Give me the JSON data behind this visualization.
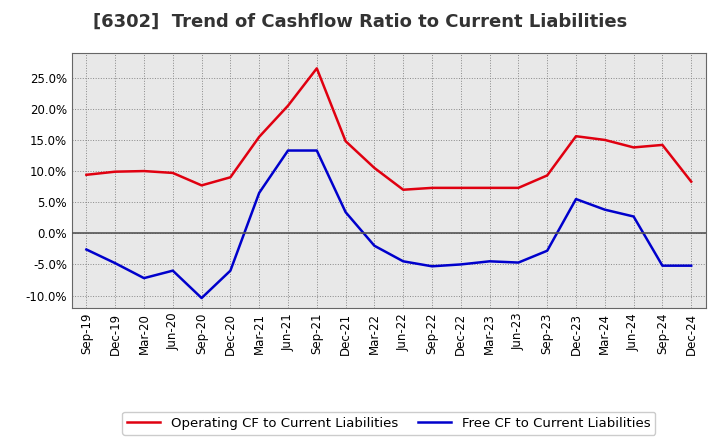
{
  "title": "[6302]  Trend of Cashflow Ratio to Current Liabilities",
  "x_labels": [
    "Sep-19",
    "Dec-19",
    "Mar-20",
    "Jun-20",
    "Sep-20",
    "Dec-20",
    "Mar-21",
    "Jun-21",
    "Sep-21",
    "Dec-21",
    "Mar-22",
    "Jun-22",
    "Sep-22",
    "Dec-22",
    "Mar-23",
    "Jun-23",
    "Sep-23",
    "Dec-23",
    "Mar-24",
    "Jun-24",
    "Sep-24",
    "Dec-24"
  ],
  "operating_cf": [
    0.094,
    0.099,
    0.1,
    0.097,
    0.077,
    0.09,
    0.155,
    0.205,
    0.265,
    0.148,
    0.105,
    0.07,
    0.073,
    0.073,
    0.073,
    0.073,
    0.093,
    0.156,
    0.15,
    0.138,
    0.142,
    0.083
  ],
  "free_cf": [
    -0.026,
    -0.048,
    -0.072,
    -0.06,
    -0.104,
    -0.06,
    0.065,
    0.133,
    0.133,
    0.034,
    -0.02,
    -0.045,
    -0.053,
    -0.05,
    -0.045,
    -0.047,
    -0.028,
    0.055,
    0.038,
    0.027,
    -0.052,
    -0.052
  ],
  "operating_color": "#e00010",
  "free_color": "#0000cc",
  "ylim": [
    -0.12,
    0.29
  ],
  "yticks": [
    -0.1,
    -0.05,
    0.0,
    0.05,
    0.1,
    0.15,
    0.2,
    0.25
  ],
  "background_color": "#ffffff",
  "plot_bg_color": "#e8e8e8",
  "grid_color": "#888888",
  "zero_line_color": "#555555",
  "legend_op": "Operating CF to Current Liabilities",
  "legend_free": "Free CF to Current Liabilities",
  "title_fontsize": 13,
  "label_fontsize": 8.5,
  "legend_fontsize": 9.5
}
